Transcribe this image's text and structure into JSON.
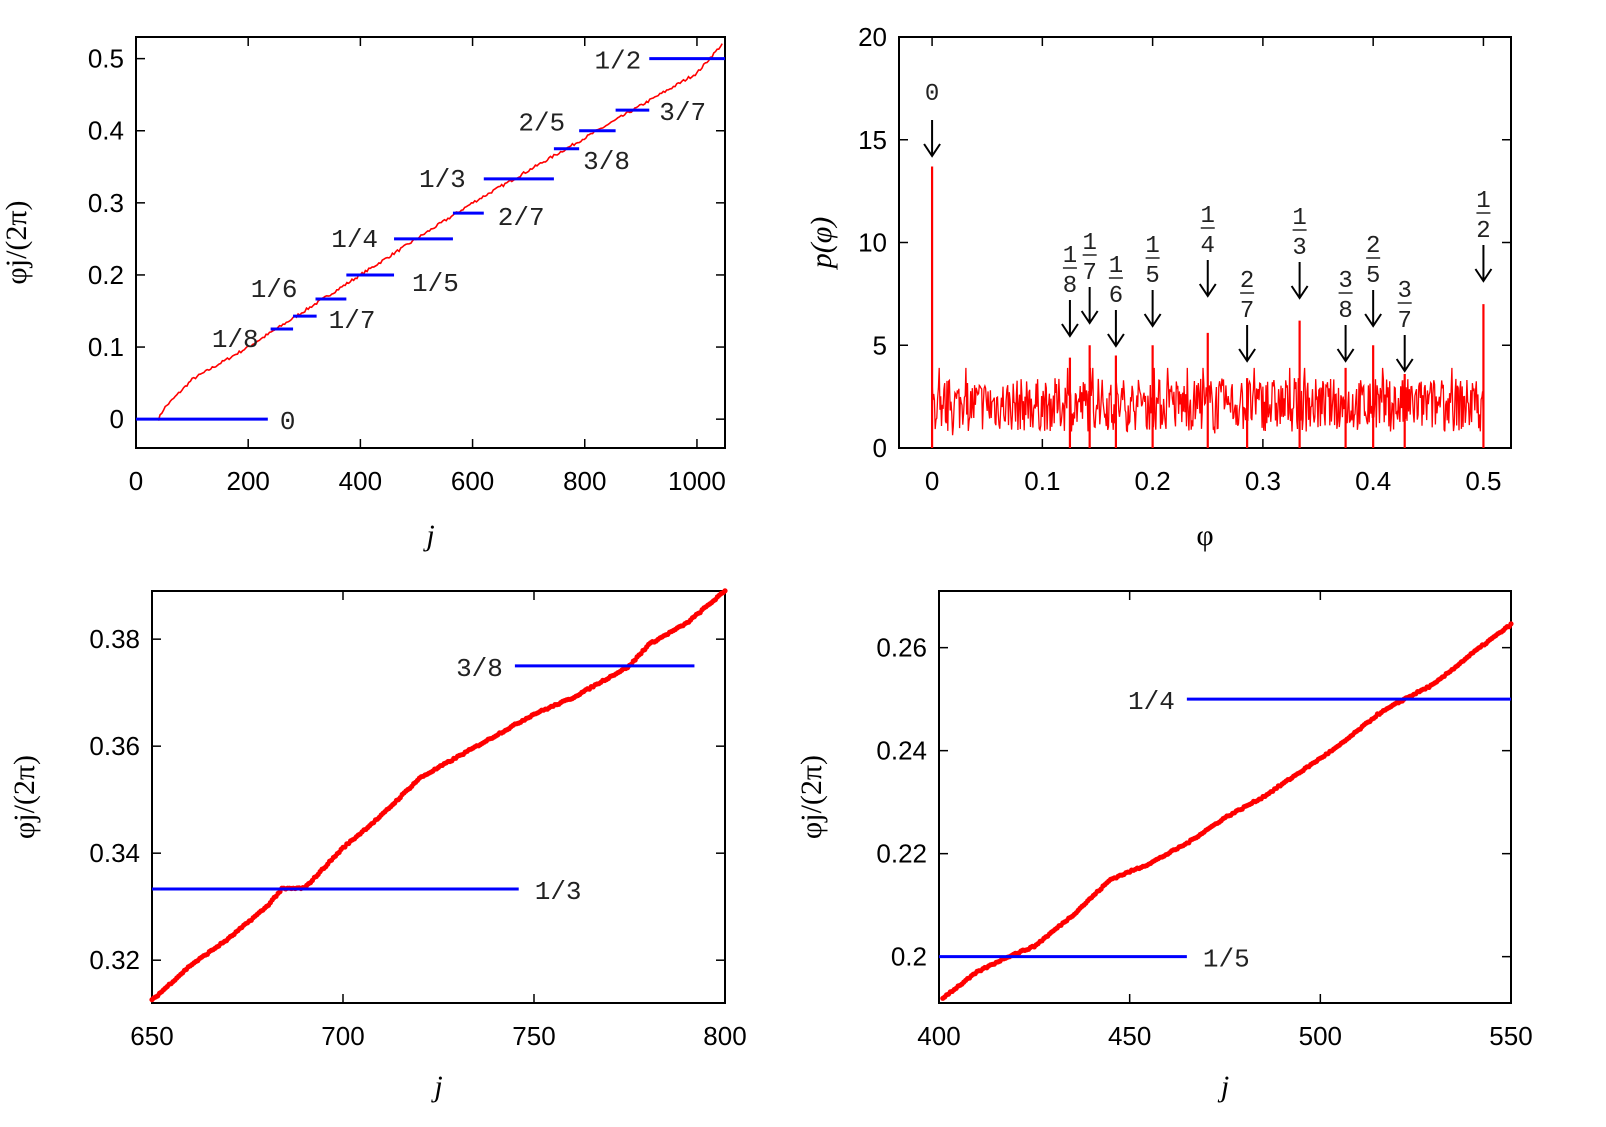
{
  "colors": {
    "curve": "#ff0000",
    "plateau": "#0000ff",
    "axis": "#000000"
  },
  "chart_data": [
    {
      "id": "p1",
      "type": "line",
      "xlabel": "j",
      "ylabel": "φj/(2π)",
      "xlim": [
        0,
        1050
      ],
      "ylim": [
        -0.04,
        0.53
      ],
      "xticks": [
        "0",
        "200",
        "400",
        "600",
        "800",
        "1000"
      ],
      "yticks": [
        "0",
        "0.1",
        "0.2",
        "0.3",
        "0.4",
        "0.5"
      ],
      "xtick_values": [
        0,
        200,
        400,
        600,
        800,
        1000
      ],
      "ytick_values": [
        0,
        0.1,
        0.2,
        0.3,
        0.4,
        0.5
      ],
      "series": [
        {
          "name": "φj/(2π)",
          "x": [
            40,
            50,
            100,
            200,
            300,
            400,
            500,
            600,
            700,
            800,
            900,
            1000,
            1045
          ],
          "y": [
            0.0,
            0.015,
            0.055,
            0.1,
            0.15,
            0.2,
            0.25,
            0.3,
            0.345,
            0.39,
            0.435,
            0.48,
            0.52
          ]
        }
      ],
      "plateaus": [
        {
          "label": "0",
          "y": 0.0,
          "x0": 0,
          "x1": 235
        },
        {
          "label": "1/8",
          "y": 0.125,
          "x0": 240,
          "x1": 280
        },
        {
          "label": "1/7",
          "y": 0.1429,
          "x0": 280,
          "x1": 322
        },
        {
          "label": "1/6",
          "y": 0.1667,
          "x0": 320,
          "x1": 375
        },
        {
          "label": "1/5",
          "y": 0.2,
          "x0": 375,
          "x1": 460
        },
        {
          "label": "1/4",
          "y": 0.25,
          "x0": 460,
          "x1": 565
        },
        {
          "label": "2/7",
          "y": 0.2857,
          "x0": 565,
          "x1": 620
        },
        {
          "label": "1/3",
          "y": 0.3333,
          "x0": 620,
          "x1": 745
        },
        {
          "label": "3/8",
          "y": 0.375,
          "x0": 745,
          "x1": 790
        },
        {
          "label": "2/5",
          "y": 0.4,
          "x0": 790,
          "x1": 855
        },
        {
          "label": "3/7",
          "y": 0.4286,
          "x0": 855,
          "x1": 915
        },
        {
          "label": "1/2",
          "y": 0.5,
          "x0": 915,
          "x1": 1050
        }
      ]
    },
    {
      "id": "p2",
      "type": "line",
      "xlabel": "φ",
      "ylabel": "p(φ)",
      "xlim": [
        -0.03,
        0.525
      ],
      "ylim": [
        0,
        20
      ],
      "xticks": [
        "0",
        "0.1",
        "0.2",
        "0.3",
        "0.4",
        "0.5"
      ],
      "yticks": [
        "0",
        "5",
        "10",
        "15",
        "20"
      ],
      "xtick_values": [
        0,
        0.1,
        0.2,
        0.3,
        0.4,
        0.5
      ],
      "ytick_values": [
        0,
        5,
        10,
        15,
        20
      ],
      "series": [
        {
          "name": "p(φ)",
          "baseline_mean": 2.1
        }
      ],
      "peaks": [
        {
          "label": "0",
          "x": 0.0,
          "height": 13.7
        },
        {
          "label": "1/8",
          "x": 0.125,
          "height": 4.4
        },
        {
          "label": "1/7",
          "x": 0.1429,
          "height": 5.0
        },
        {
          "label": "1/6",
          "x": 0.1667,
          "height": 4.5
        },
        {
          "label": "1/5",
          "x": 0.2,
          "height": 5.0
        },
        {
          "label": "1/4",
          "x": 0.25,
          "height": 5.6
        },
        {
          "label": "2/7",
          "x": 0.2857,
          "height": 3.4
        },
        {
          "label": "1/3",
          "x": 0.3333,
          "height": 6.2
        },
        {
          "label": "3/8",
          "x": 0.375,
          "height": 3.9
        },
        {
          "label": "2/5",
          "x": 0.4,
          "height": 5.0
        },
        {
          "label": "3/7",
          "x": 0.4286,
          "height": 3.6
        },
        {
          "label": "1/2",
          "x": 0.5,
          "height": 7.0
        }
      ]
    },
    {
      "id": "p3",
      "type": "scatter",
      "xlabel": "j",
      "ylabel": "φj/(2π)",
      "xlim": [
        650,
        800
      ],
      "ylim": [
        0.312,
        0.389
      ],
      "xticks": [
        "650",
        "700",
        "750",
        "800"
      ],
      "yticks": [
        "0.32",
        "0.34",
        "0.36",
        "0.38"
      ],
      "xtick_values": [
        650,
        700,
        750,
        800
      ],
      "ytick_values": [
        0.32,
        0.34,
        0.36,
        0.38
      ],
      "series": [
        {
          "name": "φj/(2π)",
          "x": [
            650,
            660,
            670,
            680,
            684,
            690,
            700,
            710,
            720,
            730,
            740,
            750,
            760,
            770,
            775,
            780,
            790,
            800
          ],
          "y": [
            0.3125,
            0.319,
            0.324,
            0.33,
            0.3333,
            0.3335,
            0.341,
            0.347,
            0.354,
            0.358,
            0.362,
            0.366,
            0.369,
            0.373,
            0.375,
            0.379,
            0.383,
            0.389
          ]
        }
      ],
      "plateaus": [
        {
          "label": "1/3",
          "y": 0.3333,
          "x0": 650,
          "x1": 746
        },
        {
          "label": "3/8",
          "y": 0.375,
          "x0": 745,
          "x1": 792
        }
      ]
    },
    {
      "id": "p4",
      "type": "scatter",
      "xlabel": "j",
      "ylabel": "φj/(2π)",
      "xlim": [
        400,
        550
      ],
      "ylim": [
        0.191,
        0.271
      ],
      "xticks": [
        "400",
        "450",
        "500",
        "550"
      ],
      "yticks": [
        "0.2",
        "0.22",
        "0.24",
        "0.26"
      ],
      "xtick_values": [
        400,
        450,
        500,
        550
      ],
      "ytick_values": [
        0.2,
        0.22,
        0.24,
        0.26
      ],
      "series": [
        {
          "name": "φj/(2π)",
          "x": [
            401,
            410,
            418,
            425,
            435,
            445,
            455,
            465,
            475,
            485,
            495,
            505,
            515,
            522,
            530,
            540,
            550
          ],
          "y": [
            0.192,
            0.197,
            0.2,
            0.202,
            0.208,
            0.215,
            0.218,
            0.222,
            0.227,
            0.231,
            0.236,
            0.241,
            0.247,
            0.25,
            0.253,
            0.259,
            0.2645
          ]
        }
      ],
      "plateaus": [
        {
          "label": "1/5",
          "y": 0.2,
          "x0": 400,
          "x1": 465
        },
        {
          "label": "1/4",
          "y": 0.25,
          "x0": 465,
          "x1": 550
        }
      ]
    }
  ]
}
